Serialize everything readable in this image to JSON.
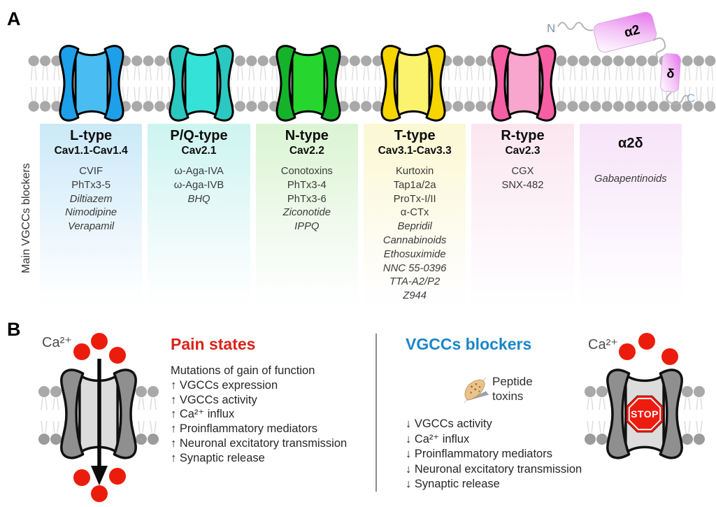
{
  "panel_a": {
    "label": "A",
    "side_label": "Main VGCCs blockers",
    "alpha2delta": {
      "n": "N",
      "alpha2": "α2",
      "delta": "δ",
      "c": "C"
    },
    "boxes": [
      {
        "name": "l-type",
        "title": "L-type",
        "subtitle": "Cav1.1-Cav1.4",
        "color": "#CBE9F8",
        "channel_outer": "#1E9FE9",
        "channel_inner": "#49BDF2",
        "items": [
          {
            "t": "CVIF",
            "i": false
          },
          {
            "t": "PhTx3-5",
            "i": false
          },
          {
            "t": "Diltiazem",
            "i": true
          },
          {
            "t": "Nimodipine",
            "i": true
          },
          {
            "t": "Verapamil",
            "i": true
          }
        ]
      },
      {
        "name": "pq-type",
        "title": "P/Q-type",
        "subtitle": "Cav2.1",
        "color": "#CDF4F0",
        "channel_outer": "#2BC8C1",
        "channel_inner": "#35E2D8",
        "items": [
          {
            "t": "ω-Aga-IVA",
            "i": false
          },
          {
            "t": "ω-Aga-IVB",
            "i": false
          },
          {
            "t": "BHQ",
            "i": true
          }
        ]
      },
      {
        "name": "n-type",
        "title": "N-type",
        "subtitle": "Cav2.2",
        "color": "#DBF4D3",
        "channel_outer": "#14B32A",
        "channel_inner": "#27D52F",
        "items": [
          {
            "t": "Conotoxins",
            "i": false
          },
          {
            "t": "PhTx3-4",
            "i": false
          },
          {
            "t": "PhTx3-6",
            "i": false
          },
          {
            "t": "Ziconotide",
            "i": true
          },
          {
            "t": "IPPQ",
            "i": true
          }
        ]
      },
      {
        "name": "t-type",
        "title": "T-type",
        "subtitle": "Cav3.1-Cav3.3",
        "color": "#FBF8D2",
        "channel_outer": "#F6D500",
        "channel_inner": "#FBF26E",
        "items": [
          {
            "t": "Kurtoxin",
            "i": false
          },
          {
            "t": "Tap1a/2a",
            "i": false
          },
          {
            "t": "ProTx-I/II",
            "i": false
          },
          {
            "t": "α-CTx",
            "i": false
          },
          {
            "t": "Bepridil",
            "i": true
          },
          {
            "t": "Cannabinoids",
            "i": true
          },
          {
            "t": "Ethosuximide",
            "i": true
          },
          {
            "t": "NNC 55-0396",
            "i": true
          },
          {
            "t": "TTA-A2/P2",
            "i": true
          },
          {
            "t": "Z944",
            "i": true
          }
        ]
      },
      {
        "name": "r-type",
        "title": "R-type",
        "subtitle": "Cav2.3",
        "color": "#FBE6EF",
        "channel_outer": "#F75FA4",
        "channel_inner": "#F8A6CE",
        "items": [
          {
            "t": "CGX",
            "i": false
          },
          {
            "t": "SNX-482",
            "i": false
          }
        ]
      },
      {
        "name": "alpha2delta",
        "title": "α2δ",
        "subtitle": "",
        "color": "#F7E3F9",
        "items": [
          {
            "t": "Gabapentinoids",
            "i": true
          }
        ]
      }
    ]
  },
  "panel_b": {
    "label": "B",
    "pain": {
      "title": "Pain states",
      "ca_label": "Ca²⁺",
      "items": [
        "Mutations of gain of function",
        "↑ VGCCs expression",
        "↑ VGCCs activity",
        "↑ Ca²⁺ influx",
        "↑ Proinflammatory mediators",
        "↑ Neuronal excitatory transmission",
        "↑ Synaptic release"
      ]
    },
    "blockers": {
      "title": "VGCCs blockers",
      "toxin_label": "Peptide toxins",
      "ca_label": "Ca²⁺",
      "stop_label": "STOP",
      "items": [
        "↓ VGCCs activity",
        "↓ Ca²⁺ influx",
        "↓ Proinflammatory mediators",
        "↓ Neuronal excitatory transmission",
        "↓ Synaptic release"
      ]
    }
  },
  "colors": {
    "pain_red": "#d7231b",
    "blocker_blue": "#1b86c8",
    "dot_red": "#ec1c0c",
    "stop_red": "#ee1c0f"
  }
}
